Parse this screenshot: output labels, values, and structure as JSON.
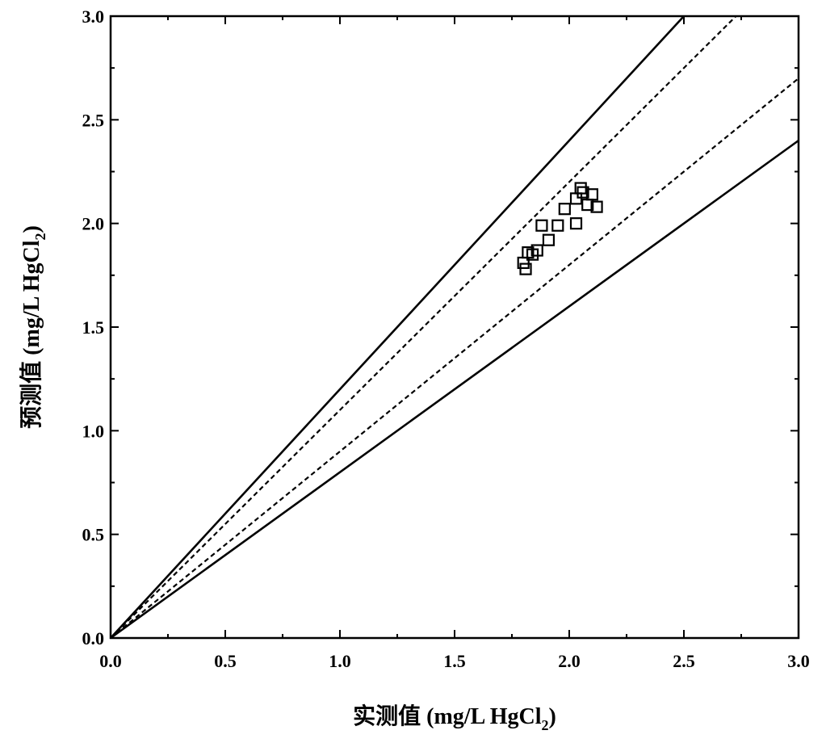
{
  "chart_data": {
    "type": "scatter",
    "title": "",
    "xlabel": "实测值 (mg/L HgCl2)",
    "ylabel": "预测值 (mg/L HgCl2)",
    "xlabel_parts": {
      "main": "实测值 (mg/L HgCl",
      "sub": "2",
      "close": ")"
    },
    "ylabel_parts": {
      "main": "预测值 (mg/L HgCl",
      "sub": "2",
      "close": ")"
    },
    "xlim": [
      0,
      3.0
    ],
    "ylim": [
      0,
      3.0
    ],
    "xticks": [
      "0.0",
      "0.5",
      "1.0",
      "1.5",
      "2.0",
      "2.5",
      "3.0"
    ],
    "yticks": [
      "0.0",
      "0.5",
      "1.0",
      "1.5",
      "2.0",
      "2.5",
      "3.0"
    ],
    "grid": false,
    "marker": "open-square",
    "series": [
      {
        "x": [
          1.8,
          1.81,
          1.82,
          1.84,
          1.86,
          1.88,
          1.91,
          1.95,
          1.98,
          2.03,
          2.03,
          2.05,
          2.06,
          2.08,
          2.1,
          2.12
        ],
        "y": [
          1.81,
          1.78,
          1.86,
          1.85,
          1.87,
          1.99,
          1.92,
          1.99,
          2.07,
          2.0,
          2.12,
          2.17,
          2.15,
          2.09,
          2.14,
          2.08
        ]
      }
    ],
    "reference_lines": [
      {
        "slope": 1.2,
        "style": "solid"
      },
      {
        "slope": 1.1,
        "style": "dashed"
      },
      {
        "slope": 0.9,
        "style": "dashed"
      },
      {
        "slope": 0.8,
        "style": "solid"
      }
    ]
  }
}
